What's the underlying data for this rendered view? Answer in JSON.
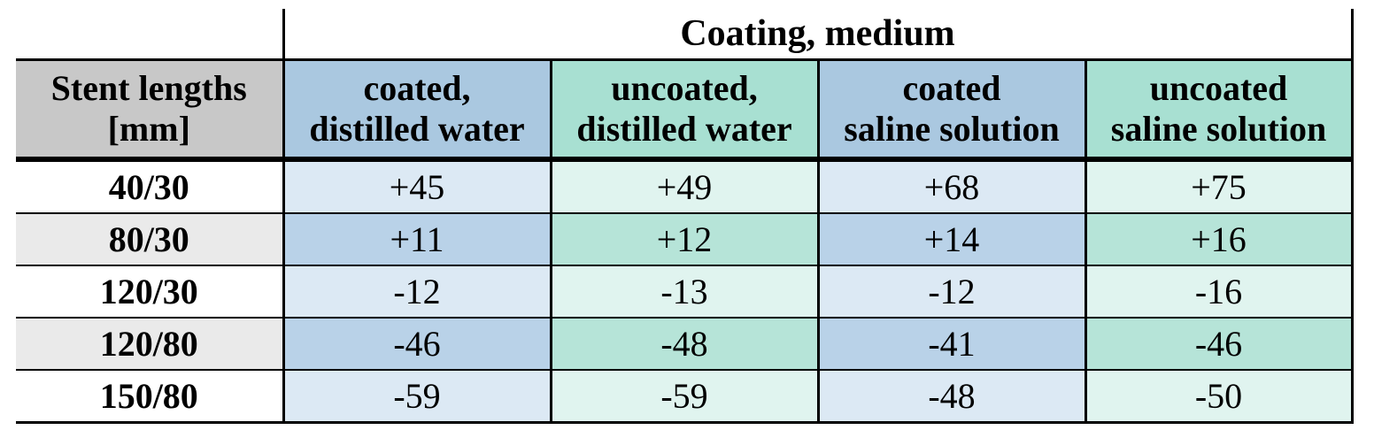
{
  "table": {
    "group_header": "Coating, medium",
    "stub_header_line1": "Stent lengths",
    "stub_header_line2": "[mm]",
    "columns": [
      {
        "line1": "coated,",
        "line2": "distilled water"
      },
      {
        "line1": "uncoated,",
        "line2": "distilled water"
      },
      {
        "line1": "coated",
        "line2": "saline solution"
      },
      {
        "line1": "uncoated",
        "line2": "saline solution"
      }
    ],
    "rows": [
      {
        "label": "40/30",
        "values": [
          "+45",
          "+49",
          "+68",
          "+75"
        ]
      },
      {
        "label": "80/30",
        "values": [
          "+11",
          "+12",
          "+14",
          "+16"
        ]
      },
      {
        "label": "120/30",
        "values": [
          "-12",
          "-13",
          "-12",
          "-16"
        ]
      },
      {
        "label": "120/80",
        "values": [
          "-46",
          "-48",
          "-41",
          "-46"
        ]
      },
      {
        "label": "150/80",
        "values": [
          "-59",
          "-59",
          "-48",
          "-50"
        ]
      }
    ]
  }
}
